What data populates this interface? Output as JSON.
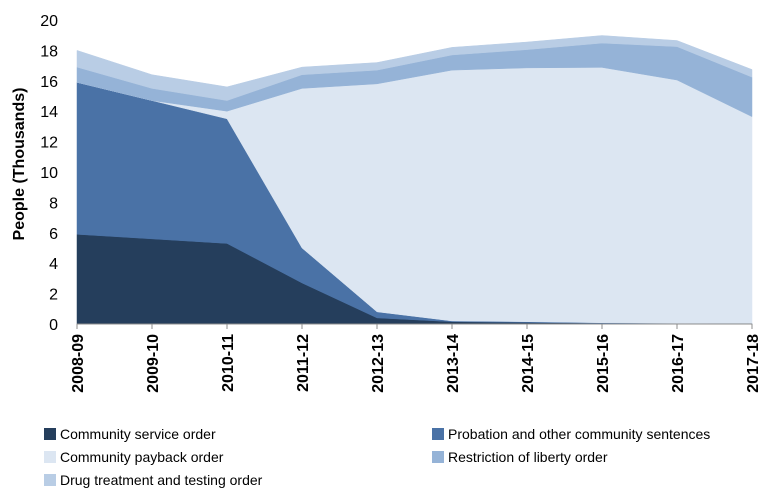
{
  "chart_data": {
    "type": "area",
    "stacked": true,
    "title": "",
    "xlabel": "",
    "ylabel": "People (Thousands)",
    "ylim": [
      0,
      20
    ],
    "yticks": [
      0,
      2,
      4,
      6,
      8,
      10,
      12,
      14,
      16,
      18,
      20
    ],
    "categories": [
      "2008-09",
      "2009-10",
      "2010-11",
      "2011-12",
      "2012-13",
      "2013-14",
      "2014-15",
      "2015-16",
      "2016-17",
      "2017-18"
    ],
    "series": [
      {
        "name": "Community service order",
        "color": "#253e5c",
        "values": [
          5.9,
          5.6,
          5.3,
          2.7,
          0.4,
          0.15,
          0.1,
          0.05,
          0.03,
          0.02
        ]
      },
      {
        "name": "Probation and other community sentences",
        "color": "#4a72a6",
        "values": [
          10.0,
          9.1,
          8.2,
          2.3,
          0.4,
          0.05,
          0.05,
          0.03,
          0.02,
          0.02
        ]
      },
      {
        "name": "Community payback order",
        "color": "#dce6f2",
        "values": [
          0,
          0,
          0.5,
          10.5,
          15.0,
          16.5,
          16.7,
          16.8,
          16.0,
          13.6
        ]
      },
      {
        "name": "Restriction of liberty order",
        "color": "#95b3d7",
        "values": [
          1.0,
          0.8,
          0.7,
          0.9,
          0.9,
          1.0,
          1.2,
          1.6,
          2.2,
          2.6
        ]
      },
      {
        "name": "Drug treatment and testing order",
        "color": "#b9cde5",
        "values": [
          1.1,
          0.9,
          0.9,
          0.5,
          0.5,
          0.5,
          0.5,
          0.5,
          0.4,
          0.5
        ]
      }
    ],
    "legend_position": "bottom",
    "grid": false
  }
}
